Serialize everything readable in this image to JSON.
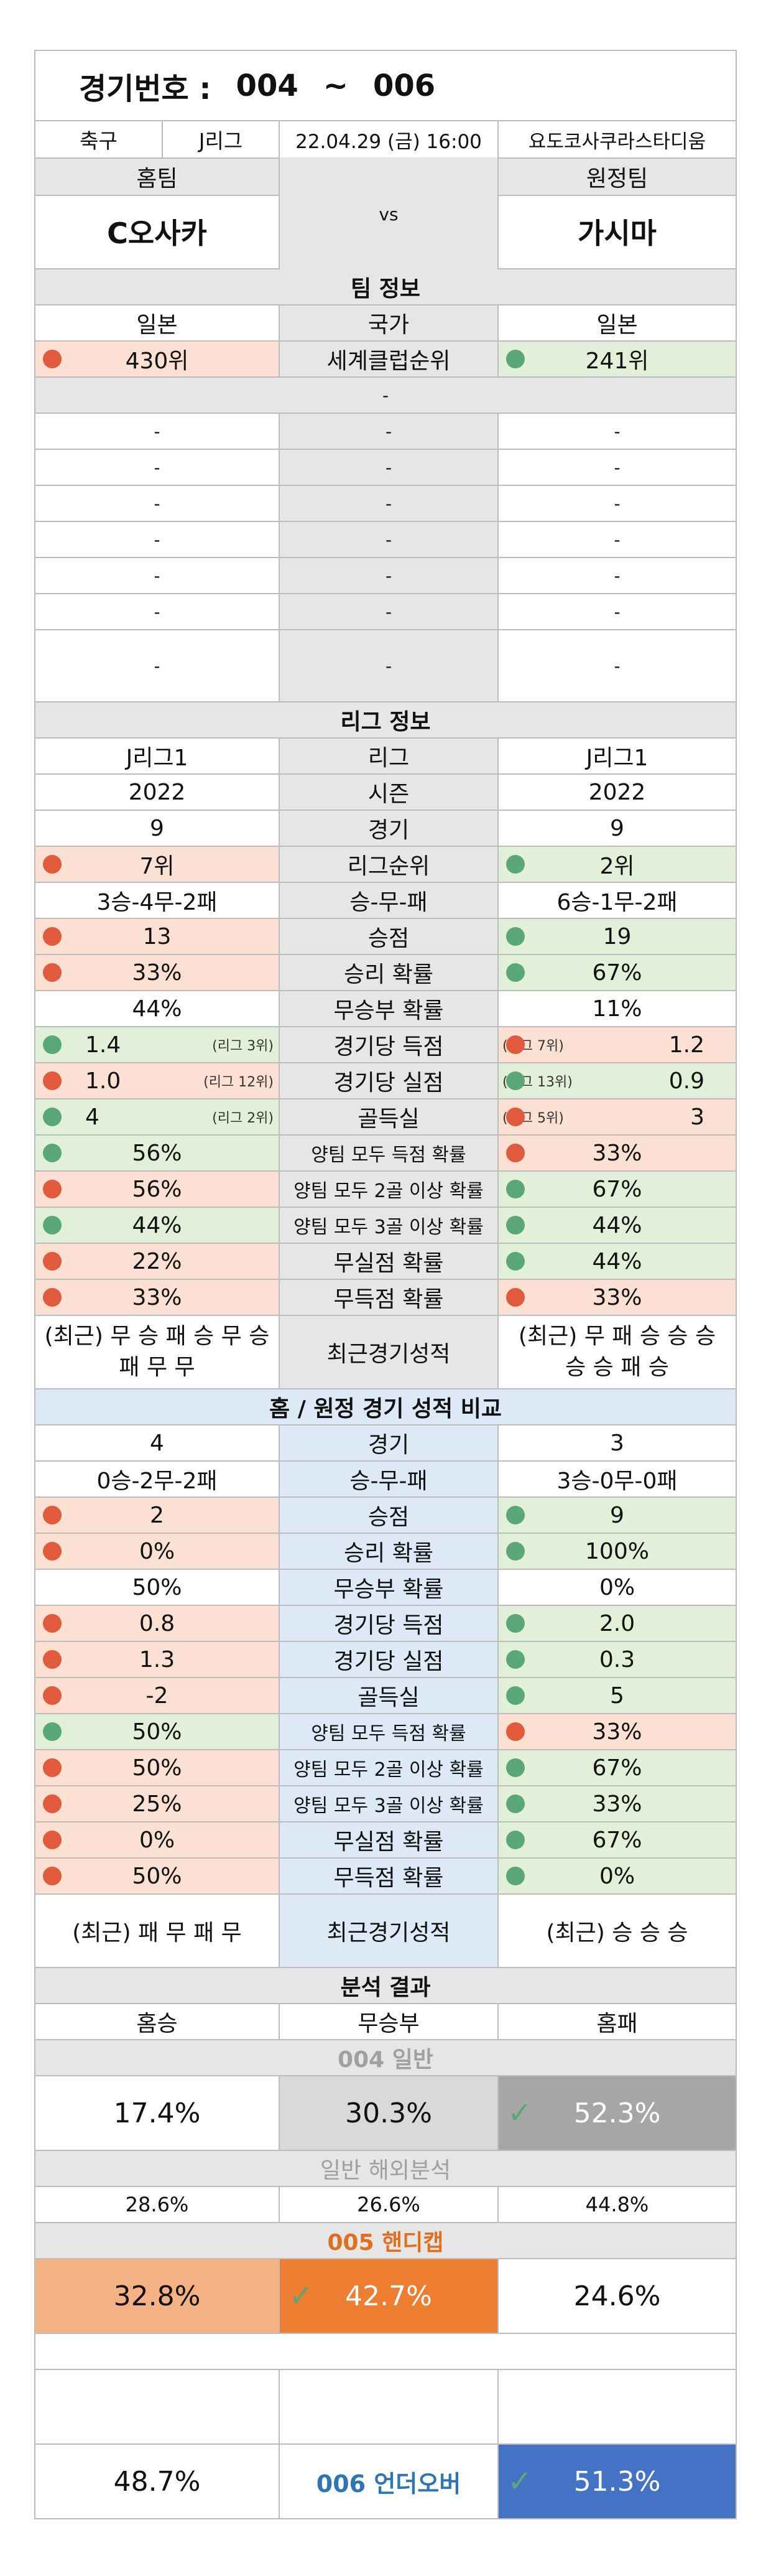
{
  "header": {
    "label": "경기번호 :",
    "from": "004",
    "tilde": "~",
    "to": "006"
  },
  "match": {
    "sport": "축구",
    "league": "J리그",
    "datetime": "22.04.29 (금) 16:00",
    "stadium": "요도코사쿠라스타디움"
  },
  "teams": {
    "home_label": "홈팀",
    "away_label": "원정팀",
    "home": "C오사카",
    "vs": "vs",
    "away": "가시마"
  },
  "team_info": {
    "title": "팀 정보",
    "country_home": "일본",
    "country_label": "국가",
    "country_away": "일본",
    "rank_home": "430위",
    "rank_label": "세계클럽순위",
    "rank_away": "241위",
    "dash": "-",
    "empty_rows": [
      [
        "-",
        "-",
        "-"
      ],
      [
        "-",
        "-",
        "-"
      ],
      [
        "-",
        "-",
        "-"
      ],
      [
        "-",
        "-",
        "-"
      ],
      [
        "-",
        "-",
        "-"
      ],
      [
        "-",
        "-",
        "-"
      ],
      [
        "-",
        "-",
        "-"
      ]
    ]
  },
  "league_info": {
    "title": "리그 정보",
    "rows": [
      {
        "home": "J리그1",
        "label": "리그",
        "away": "J리그1"
      },
      {
        "home": "2022",
        "label": "시즌",
        "away": "2022"
      },
      {
        "home": "9",
        "label": "경기",
        "away": "9"
      },
      {
        "home": "7위",
        "label": "리그순위",
        "away": "2위",
        "hc": "red",
        "ac": "green"
      },
      {
        "home": "3승-4무-2패",
        "label": "승-무-패",
        "away": "6승-1무-2패"
      },
      {
        "home": "13",
        "label": "승점",
        "away": "19",
        "hc": "red",
        "ac": "green"
      },
      {
        "home": "33%",
        "label": "승리 확률",
        "away": "67%",
        "hc": "red",
        "ac": "green"
      },
      {
        "home": "44%",
        "label": "무승부 확률",
        "away": "11%"
      },
      {
        "home": "1.4",
        "hnote": "(리그 3위)",
        "label": "경기당 득점",
        "away": "1.2",
        "anote": "(리그 7위)",
        "hc": "green",
        "ac": "red"
      },
      {
        "home": "1.0",
        "hnote": "(리그 12위)",
        "label": "경기당 실점",
        "away": "0.9",
        "anote": "(리그 13위)",
        "hc": "red",
        "ac": "green"
      },
      {
        "home": "4",
        "hnote": "(리그 2위)",
        "label": "골득실",
        "away": "3",
        "anote": "(리그 5위)",
        "hc": "green",
        "ac": "red"
      },
      {
        "home": "56%",
        "label": "양팀 모두 득점 확률",
        "away": "33%",
        "hc": "green",
        "ac": "red"
      },
      {
        "home": "56%",
        "label": "양팀 모두 2골 이상 확률",
        "away": "67%",
        "hc": "red",
        "ac": "green"
      },
      {
        "home": "44%",
        "label": "양팀 모두 3골 이상 확률",
        "away": "44%",
        "hc": "green",
        "ac": "green"
      },
      {
        "home": "22%",
        "label": "무실점 확률",
        "away": "44%",
        "hc": "red",
        "ac": "green"
      },
      {
        "home": "33%",
        "label": "무득점 확률",
        "away": "33%",
        "hc": "red",
        "ac": "red"
      }
    ],
    "recent_home": "(최근) 무 승 패 승 무 승 패 무 무",
    "recent_label": "최근경기성적",
    "recent_away": "(최근) 무 패 승 승 승 승 승 패 승"
  },
  "home_away": {
    "title": "홈 / 원정 경기 성적 비교",
    "rows": [
      {
        "home": "4",
        "label": "경기",
        "away": "3"
      },
      {
        "home": "0승-2무-2패",
        "label": "승-무-패",
        "away": "3승-0무-0패"
      },
      {
        "home": "2",
        "label": "승점",
        "away": "9",
        "hc": "red",
        "ac": "green"
      },
      {
        "home": "0%",
        "label": "승리 확률",
        "away": "100%",
        "hc": "red",
        "ac": "green"
      },
      {
        "home": "50%",
        "label": "무승부 확률",
        "away": "0%"
      },
      {
        "home": "0.8",
        "label": "경기당 득점",
        "away": "2.0",
        "hc": "red",
        "ac": "green"
      },
      {
        "home": "1.3",
        "label": "경기당 실점",
        "away": "0.3",
        "hc": "red",
        "ac": "green"
      },
      {
        "home": "-2",
        "label": "골득실",
        "away": "5",
        "hc": "red",
        "ac": "green"
      },
      {
        "home": "50%",
        "label": "양팀 모두 득점 확률",
        "away": "33%",
        "hc": "green",
        "ac": "red"
      },
      {
        "home": "50%",
        "label": "양팀 모두 2골 이상 확률",
        "away": "67%",
        "hc": "red",
        "ac": "green"
      },
      {
        "home": "25%",
        "label": "양팀 모두 3골 이상 확률",
        "away": "33%",
        "hc": "red",
        "ac": "green"
      },
      {
        "home": "0%",
        "label": "무실점 확률",
        "away": "67%",
        "hc": "red",
        "ac": "green"
      },
      {
        "home": "50%",
        "label": "무득점 확률",
        "away": "0%",
        "hc": "red",
        "ac": "green"
      }
    ],
    "recent_home": "(최근) 패 무 패 무",
    "recent_label": "최근경기성적",
    "recent_away": "(최근) 승 승 승"
  },
  "analysis": {
    "title": "분석 결과",
    "col_home": "홈승",
    "col_draw": "무승부",
    "col_away": "홈패",
    "g004_title": "004 일반",
    "g004": {
      "home": "17.4%",
      "draw": "30.3%",
      "away": "52.3%"
    },
    "overseas_title": "일반 해외분석",
    "overseas": {
      "home": "28.6%",
      "draw": "26.6%",
      "away": "44.8%"
    },
    "g005_title": "005 핸디캡",
    "g005": {
      "home": "32.8%",
      "draw": "42.7%",
      "away": "24.6%"
    },
    "g006_title": "006 언더오버",
    "g006": {
      "under": "48.7%",
      "over": "51.3%"
    }
  },
  "colors": {
    "red_bg": "#fce0d3",
    "green_bg": "#e3f0d9",
    "red_dot": "#e05a3b",
    "green_dot": "#5aa878",
    "header_gray": "#e6e6e6",
    "light_blue": "#dde9f6",
    "orange": "#ed7d31",
    "peach": "#f4b183",
    "dark_gray": "#a6a6a6",
    "blue": "#4472c4",
    "title_orange": "#e07020",
    "title_blue": "#2e75b6"
  },
  "icons": {
    "check": "check-icon",
    "dot": "indicator-dot-icon"
  }
}
